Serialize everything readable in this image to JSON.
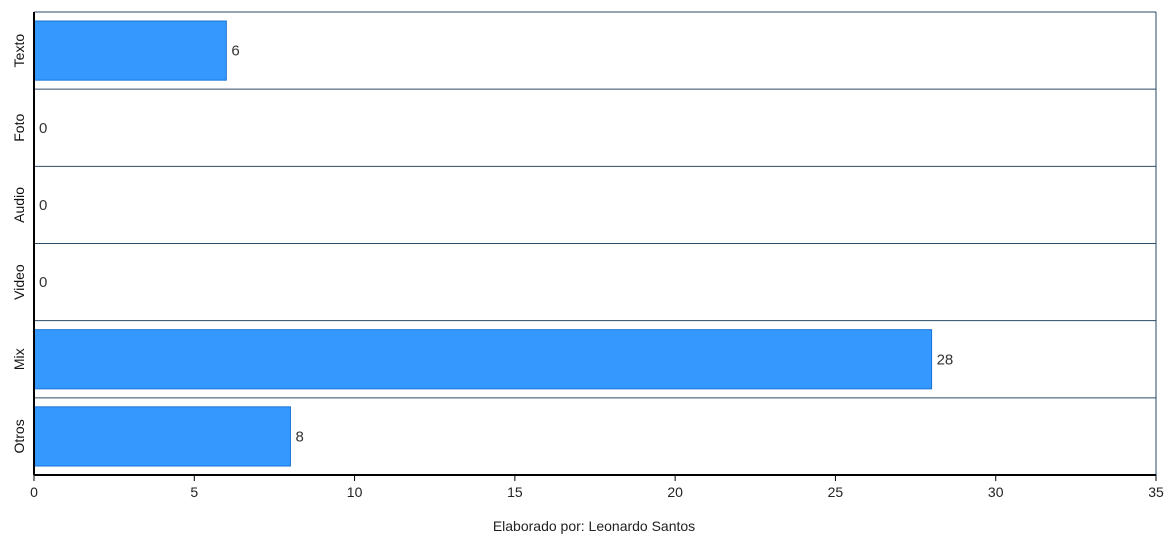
{
  "chart_data": {
    "type": "bar",
    "orientation": "horizontal",
    "categories": [
      "Texto",
      "Foto",
      "Audio",
      "Video",
      "Mix",
      "Otros"
    ],
    "values": [
      6,
      0,
      0,
      0,
      28,
      8
    ],
    "data_labels": [
      "6",
      "0",
      "0",
      "0",
      "28",
      "8"
    ],
    "xlim": [
      0,
      35
    ],
    "xticks": [
      0,
      5,
      10,
      15,
      20,
      25,
      30,
      35
    ],
    "xtick_labels": [
      "0",
      "5",
      "10",
      "15",
      "20",
      "25",
      "30",
      "35"
    ],
    "bar_color": "#3399ff",
    "bar_edge_color": "#1a73d9",
    "grid": false,
    "caption": "Elaborado por: Leonardo Santos"
  }
}
